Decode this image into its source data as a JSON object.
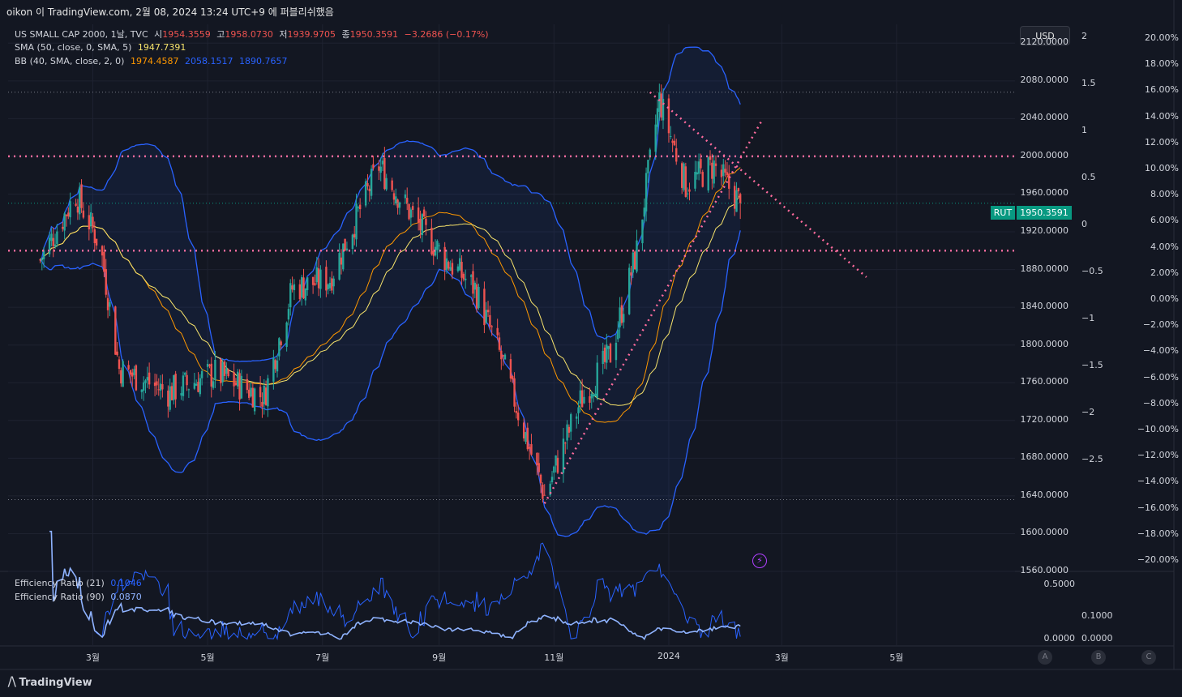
{
  "header": {
    "caption": "oikon 이 TradingView.com, 2월 08, 2024 13:24 UTC+9 에 퍼블리쉬했음"
  },
  "legend": {
    "symbol": "US SMALL CAP 2000, 1날, TVC",
    "o_label": "시",
    "o": "1954.3559",
    "h_label": "고",
    "h": "1958.0730",
    "l_label": "저",
    "l": "1939.9705",
    "c_label": "종",
    "c": "1950.3591",
    "change": "−3.2686 (−0.17%)",
    "sma_label": "SMA (50, close, 0, SMA, 5)",
    "sma_value": "1947.7391",
    "bb_label": "BB (40, SMA, close, 2, 0)",
    "bb_basis": "1974.4587",
    "bb_upper": "2058.1517",
    "bb_lower": "1890.7657",
    "er21_label": "Efficiency Ratio (21)",
    "er21_value": "0.1046",
    "er90_label": "Efficiency Ratio (90)",
    "er90_value": "0.0870"
  },
  "currency_button": "USD",
  "price_tag": {
    "symbol": "RUT",
    "value": "1950.3591"
  },
  "price_axis": [
    "2120.0000",
    "2080.0000",
    "2040.0000",
    "2000.0000",
    "1960.0000",
    "1920.0000",
    "1880.0000",
    "1840.0000",
    "1800.0000",
    "1760.0000",
    "1720.0000",
    "1680.0000",
    "1640.0000",
    "1600.0000",
    "1560.0000"
  ],
  "sigma_axis": [
    "2.5",
    "2",
    "1.5",
    "1",
    "0.5",
    "0",
    "−0.5",
    "−1",
    "−1.5",
    "−2",
    "−2.5"
  ],
  "pct_axis": [
    "20.00%",
    "18.00%",
    "16.00%",
    "14.00%",
    "12.00%",
    "10.00%",
    "8.00%",
    "6.00%",
    "4.00%",
    "2.00%",
    "0.00%",
    "−2.00%",
    "−4.00%",
    "−6.00%",
    "−8.00%",
    "−10.00%",
    "−12.00%",
    "−14.00%",
    "−16.00%",
    "−18.00%",
    "−20.00%"
  ],
  "er_axis": [
    "0.5000",
    "0.0000"
  ],
  "er_axis2": [
    "0.1000",
    "0.0000"
  ],
  "time_axis": [
    "3월",
    "5월",
    "7월",
    "9월",
    "11월",
    "2024",
    "3월",
    "5월"
  ],
  "abc_buttons": [
    "A",
    "B",
    "C"
  ],
  "brand": "TradingView",
  "colors": {
    "bg": "#131722",
    "up": "#26a69a",
    "down": "#ef5350",
    "bb": "#2962ff",
    "sma": "#f7e36b",
    "basis": "#ff9800",
    "trend": "#ff6b9d",
    "accent": "#089981"
  },
  "chart_data": {
    "type": "candlestick",
    "ylim": [
      1560,
      2140
    ],
    "horizontal_levels": [
      2000,
      1900
    ],
    "dotted_extremes": [
      2068,
      1636
    ],
    "last_close": 1950.3591,
    "x_ticks": [
      "3월",
      "5월",
      "7월",
      "9월",
      "11월",
      "2024",
      "3월",
      "5월"
    ],
    "close_path": [
      [
        "2023-02-01",
        1890
      ],
      [
        "2023-02-20",
        1960
      ],
      [
        "2023-03-05",
        1905
      ],
      [
        "2023-03-15",
        1775
      ],
      [
        "2023-04-10",
        1750
      ],
      [
        "2023-05-05",
        1770
      ],
      [
        "2023-05-31",
        1745
      ],
      [
        "2023-06-15",
        1860
      ],
      [
        "2023-07-05",
        1870
      ],
      [
        "2023-07-31",
        1990
      ],
      [
        "2023-08-20",
        1930
      ],
      [
        "2023-09-05",
        1890
      ],
      [
        "2023-09-20",
        1860
      ],
      [
        "2023-10-05",
        1780
      ],
      [
        "2023-10-27",
        1640
      ],
      [
        "2023-11-15",
        1740
      ],
      [
        "2023-12-01",
        1790
      ],
      [
        "2023-12-15",
        1900
      ],
      [
        "2023-12-27",
        2060
      ],
      [
        "2024-01-10",
        1970
      ],
      [
        "2024-01-25",
        1990
      ],
      [
        "2024-02-08",
        1950
      ]
    ]
  }
}
